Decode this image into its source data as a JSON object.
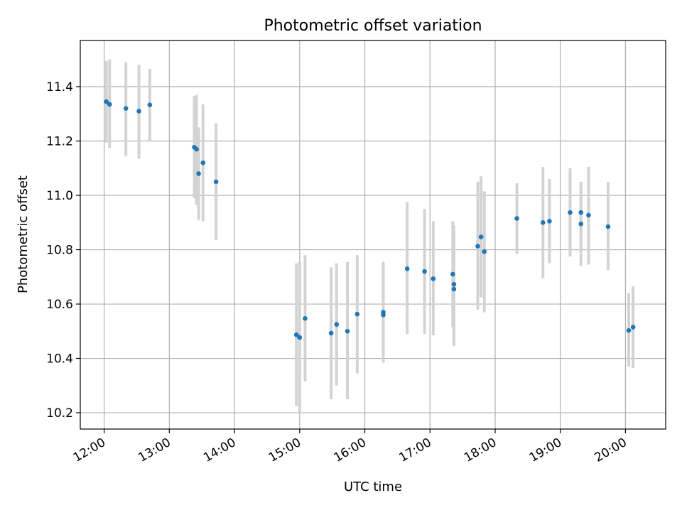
{
  "chart_data": {
    "type": "scatter",
    "title": "Photometric offset variation",
    "xlabel": "UTC time",
    "ylabel": "Photometric offset",
    "x_axis_kind": "time",
    "xlim": [
      "11:38",
      "20:37"
    ],
    "ylim": [
      10.14,
      11.57
    ],
    "x_ticks": [
      "12:00",
      "13:00",
      "14:00",
      "15:00",
      "16:00",
      "17:00",
      "18:00",
      "19:00",
      "20:00"
    ],
    "y_ticks": [
      10.2,
      10.4,
      10.6,
      10.8,
      11.0,
      11.2,
      11.4
    ],
    "y_tick_labels": [
      "10.2",
      "10.4",
      "10.6",
      "10.8",
      "11.0",
      "11.2",
      "11.4"
    ],
    "grid": true,
    "colors": {
      "points": "#1f77b4",
      "errorbars": "#d3d3d3",
      "grid": "#b0b0b0"
    },
    "points": [
      {
        "t": "12:02",
        "y": 11.345,
        "lo": 11.195,
        "hi": 11.495
      },
      {
        "t": "12:05",
        "y": 11.335,
        "lo": 11.175,
        "hi": 11.5
      },
      {
        "t": "12:20",
        "y": 11.32,
        "lo": 11.145,
        "hi": 11.49
      },
      {
        "t": "12:32",
        "y": 11.31,
        "lo": 11.135,
        "hi": 11.48
      },
      {
        "t": "12:42",
        "y": 11.333,
        "lo": 11.2,
        "hi": 11.465
      },
      {
        "t": "13:23",
        "y": 11.177,
        "lo": 10.99,
        "hi": 11.365
      },
      {
        "t": "13:25",
        "y": 11.17,
        "lo": 10.965,
        "hi": 11.37
      },
      {
        "t": "13:27",
        "y": 11.08,
        "lo": 10.91,
        "hi": 11.25
      },
      {
        "t": "13:31",
        "y": 11.12,
        "lo": 10.905,
        "hi": 11.335
      },
      {
        "t": "13:43",
        "y": 11.05,
        "lo": 10.835,
        "hi": 11.265
      },
      {
        "t": "14:57",
        "y": 10.487,
        "lo": 10.225,
        "hi": 10.75
      },
      {
        "t": "15:00",
        "y": 10.477,
        "lo": 10.2,
        "hi": 10.755
      },
      {
        "t": "15:05",
        "y": 10.547,
        "lo": 10.315,
        "hi": 10.78
      },
      {
        "t": "15:29",
        "y": 10.493,
        "lo": 10.25,
        "hi": 10.735
      },
      {
        "t": "15:34",
        "y": 10.525,
        "lo": 10.3,
        "hi": 10.75
      },
      {
        "t": "15:44",
        "y": 10.5,
        "lo": 10.25,
        "hi": 10.755
      },
      {
        "t": "15:53",
        "y": 10.563,
        "lo": 10.345,
        "hi": 10.78
      },
      {
        "t": "16:17",
        "y": 10.57,
        "lo": 10.385,
        "hi": 10.755
      },
      {
        "t": "16:17",
        "y": 10.56,
        "lo": 10.385,
        "hi": 10.735
      },
      {
        "t": "16:39",
        "y": 10.73,
        "lo": 10.49,
        "hi": 10.975
      },
      {
        "t": "16:55",
        "y": 10.72,
        "lo": 10.49,
        "hi": 10.95
      },
      {
        "t": "17:03",
        "y": 10.693,
        "lo": 10.485,
        "hi": 10.905
      },
      {
        "t": "17:21",
        "y": 10.71,
        "lo": 10.515,
        "hi": 10.905
      },
      {
        "t": "17:22",
        "y": 10.673,
        "lo": 10.455,
        "hi": 10.89
      },
      {
        "t": "17:22",
        "y": 10.655,
        "lo": 10.445,
        "hi": 10.85
      },
      {
        "t": "17:44",
        "y": 10.813,
        "lo": 10.58,
        "hi": 11.05
      },
      {
        "t": "17:47",
        "y": 10.847,
        "lo": 10.625,
        "hi": 11.07
      },
      {
        "t": "17:50",
        "y": 10.793,
        "lo": 10.57,
        "hi": 11.015
      },
      {
        "t": "18:20",
        "y": 10.915,
        "lo": 10.785,
        "hi": 11.045
      },
      {
        "t": "18:44",
        "y": 10.9,
        "lo": 10.695,
        "hi": 11.105
      },
      {
        "t": "18:50",
        "y": 10.905,
        "lo": 10.75,
        "hi": 11.06
      },
      {
        "t": "19:09",
        "y": 10.937,
        "lo": 10.775,
        "hi": 11.1
      },
      {
        "t": "19:19",
        "y": 10.937,
        "lo": 10.805,
        "hi": 11.05
      },
      {
        "t": "19:19",
        "y": 10.895,
        "lo": 10.74,
        "hi": 11.05
      },
      {
        "t": "19:26",
        "y": 10.927,
        "lo": 10.745,
        "hi": 11.105
      },
      {
        "t": "19:44",
        "y": 10.885,
        "lo": 10.725,
        "hi": 11.05
      },
      {
        "t": "20:03",
        "y": 10.503,
        "lo": 10.37,
        "hi": 10.64
      },
      {
        "t": "20:07",
        "y": 10.515,
        "lo": 10.365,
        "hi": 10.665
      }
    ]
  }
}
